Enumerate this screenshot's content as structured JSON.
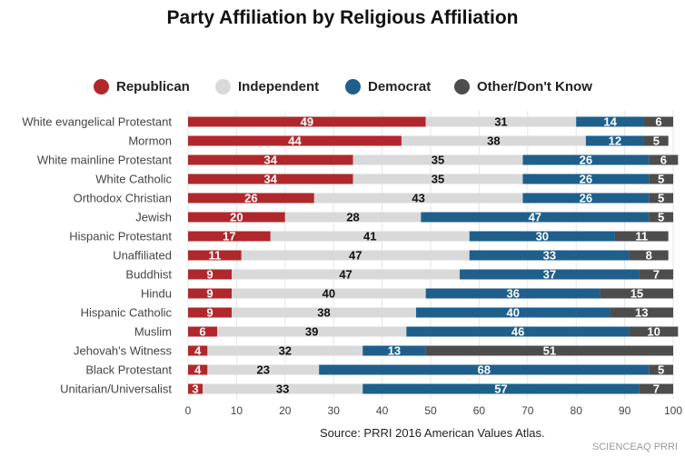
{
  "chart_data": {
    "type": "bar",
    "orientation": "horizontal",
    "stacked": true,
    "title": "Party Affiliation by Religious Affiliation",
    "legend_position": "top",
    "categories": [
      "White evangelical Protestant",
      "Mormon",
      "White mainline Protestant",
      "White Catholic",
      "Orthodox Christian",
      "Jewish",
      "Hispanic Protestant",
      "Unaffiliated",
      "Buddhist",
      "Hindu",
      "Hispanic Catholic",
      "Muslim",
      "Jehovah's Witness",
      "Black Protestant",
      "Unitarian/Universalist"
    ],
    "series": [
      {
        "name": "Republican",
        "color": "#b0282c",
        "label_color": "#ffffff",
        "values": [
          49,
          44,
          34,
          34,
          26,
          20,
          17,
          11,
          9,
          9,
          9,
          6,
          4,
          4,
          3
        ]
      },
      {
        "name": "Independent",
        "color": "#d9d9d9",
        "label_color": "#111111",
        "values": [
          31,
          38,
          35,
          35,
          43,
          28,
          41,
          47,
          47,
          40,
          38,
          39,
          32,
          23,
          33
        ]
      },
      {
        "name": "Democrat",
        "color": "#1f5f8b",
        "label_color": "#ffffff",
        "values": [
          14,
          12,
          26,
          26,
          26,
          47,
          30,
          33,
          37,
          36,
          40,
          46,
          13,
          68,
          57
        ]
      },
      {
        "name": "Other/Don't Know",
        "color": "#4d4d4d",
        "label_color": "#ffffff",
        "values": [
          6,
          5,
          6,
          5,
          5,
          5,
          11,
          8,
          7,
          15,
          13,
          10,
          51,
          5,
          7
        ]
      }
    ],
    "xlim": [
      0,
      100
    ],
    "xticks": [
      0,
      10,
      20,
      30,
      40,
      50,
      60,
      70,
      80,
      90,
      100
    ],
    "grid": true,
    "source": "Source: PRRI 2016 American Values Atlas."
  },
  "watermark": "SCIENCEAQ PRRI"
}
